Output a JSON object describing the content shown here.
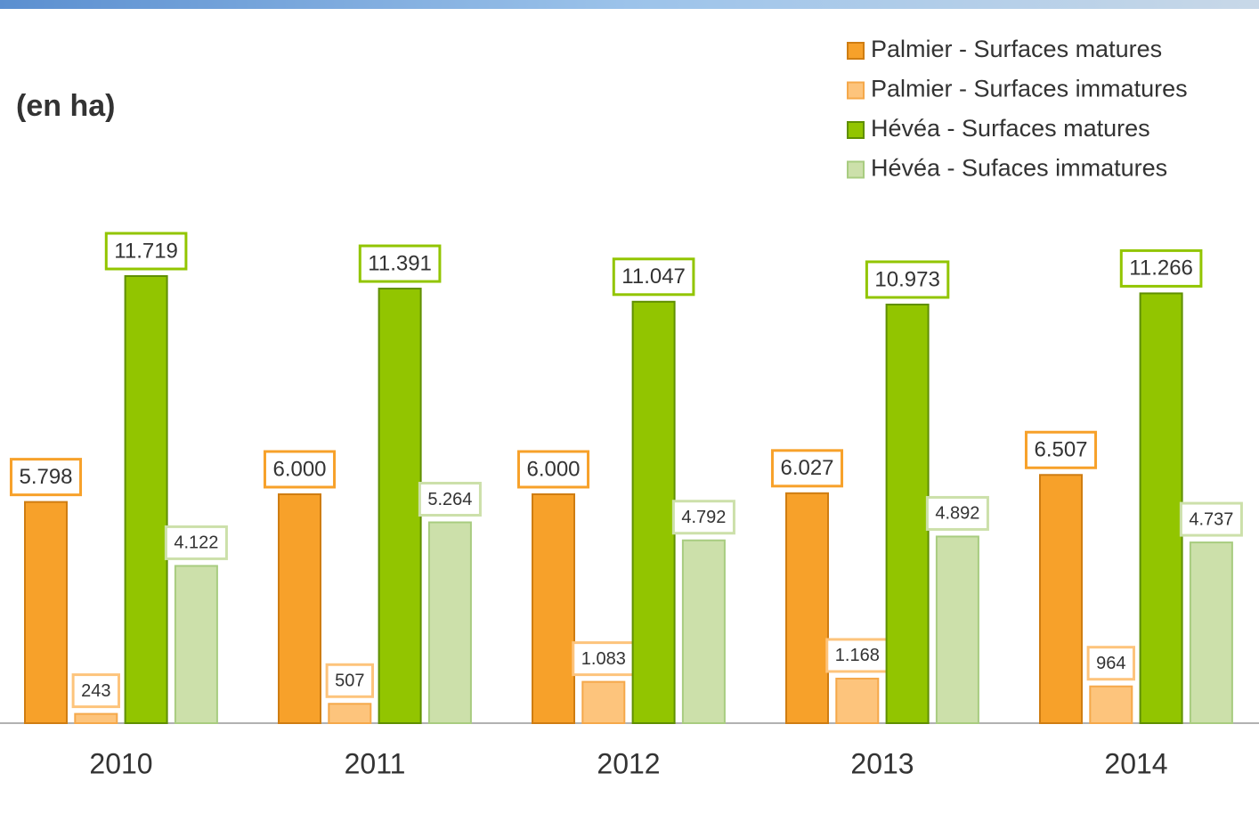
{
  "chart_data": {
    "type": "bar",
    "title": "(en ha)",
    "categories": [
      "2010",
      "2011",
      "2012",
      "2013",
      "2014"
    ],
    "series": [
      {
        "name": "Palmier - Surfaces matures",
        "color": "#f7a12a",
        "values": [
          5798,
          6000,
          6000,
          6027,
          6507
        ],
        "value_labels": [
          "5.798",
          "6.000",
          "6.000",
          "6.027",
          "6.507"
        ]
      },
      {
        "name": "Palmier - Surfaces immatures",
        "color": "#fdc47c",
        "values": [
          243,
          507,
          1083,
          1168,
          964
        ],
        "value_labels": [
          "243",
          "507",
          "1.083",
          "1.168",
          "964"
        ]
      },
      {
        "name": "Hévéa - Surfaces matures",
        "color": "#92c500",
        "values": [
          11719,
          11391,
          11047,
          10973,
          11266
        ],
        "value_labels": [
          "11.719",
          "11.391",
          "11.047",
          "10.973",
          "11.266"
        ]
      },
      {
        "name": "Hévéa - Sufaces immatures",
        "color": "#cce0aa",
        "values": [
          4122,
          5264,
          4792,
          4892,
          4737
        ],
        "value_labels": [
          "4.122",
          "5.264",
          "4.792",
          "4.892",
          "4.737"
        ]
      }
    ]
  }
}
